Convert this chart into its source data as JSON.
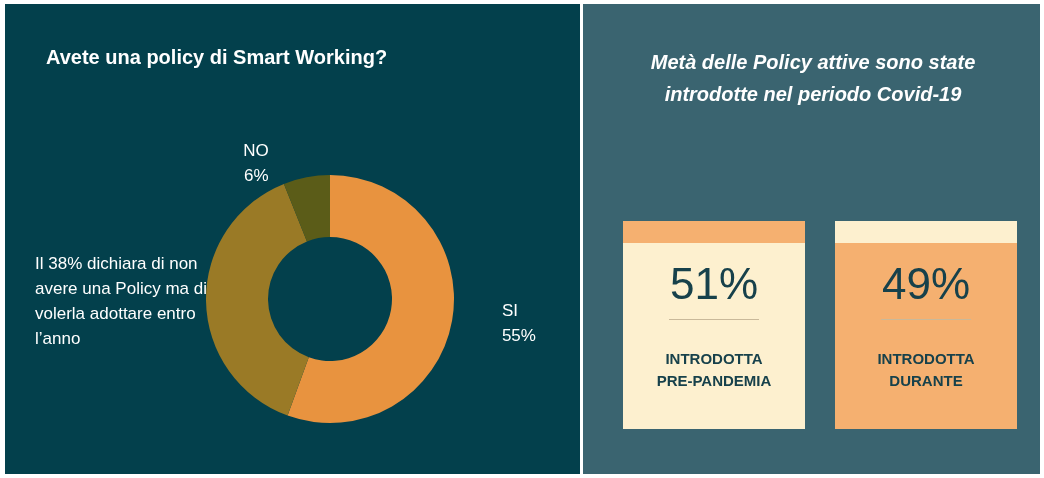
{
  "chart_data": [
    {
      "type": "donut",
      "title": "Avete una policy di Smart Working?",
      "categories": [
        "SI",
        "Il 38% dichiara di non avere una Policy ma di volerla adottare entro l’anno",
        "NO"
      ],
      "values": [
        55,
        38,
        6
      ],
      "value_labels": [
        "55%",
        null,
        "6%"
      ],
      "colors": [
        "#e8933f",
        "#9a7a26",
        "#5b5c18"
      ],
      "legend": false
    },
    {
      "type": "other",
      "title": "Metà delle Policy attive sono state introdotte nel periodo Covid-19",
      "categories": [
        "INTRODOTTA PRE-PANDEMIA",
        "INTRODOTTA DURANTE"
      ],
      "value_labels": [
        "51%",
        "49%"
      ],
      "colors": [
        "#fdf0cf",
        "#f5b070"
      ]
    }
  ]
}
